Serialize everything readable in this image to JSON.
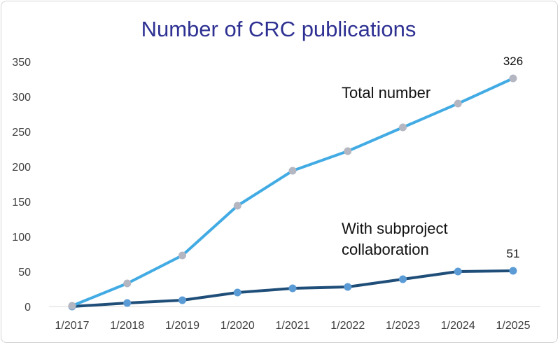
{
  "chart_data": {
    "type": "line",
    "title": "Number of CRC publications",
    "categories": [
      "1/2017",
      "1/2018",
      "1/2019",
      "1/2020",
      "1/2021",
      "1/2022",
      "1/2023",
      "1/2024",
      "1/2025"
    ],
    "ylim": [
      0,
      350
    ],
    "yticks": [
      0,
      50,
      100,
      150,
      200,
      250,
      300,
      350
    ],
    "grid": false,
    "series": [
      {
        "values": [
          1,
          33,
          73,
          144,
          194,
          222,
          256,
          290,
          326
        ],
        "line_color": "#42abe3",
        "marker_color": "#b4b7c1"
      },
      {
        "values": [
          0,
          5,
          9,
          20,
          26,
          28,
          39,
          50,
          51
        ],
        "line_color": "#1f4e79",
        "marker_color": "#5b9bd5"
      }
    ],
    "annotations": [
      {
        "text": "Total number",
        "series": 0,
        "anchor_category": "1/2023"
      },
      {
        "text": "With subproject",
        "series": 1,
        "anchor_category": "1/2022"
      },
      {
        "text": "collaboration",
        "series": 1,
        "anchor_category": "1/2022"
      }
    ],
    "data_labels": [
      {
        "series": 0,
        "index": 8,
        "text": "326"
      },
      {
        "series": 1,
        "index": 8,
        "text": "51"
      }
    ]
  }
}
